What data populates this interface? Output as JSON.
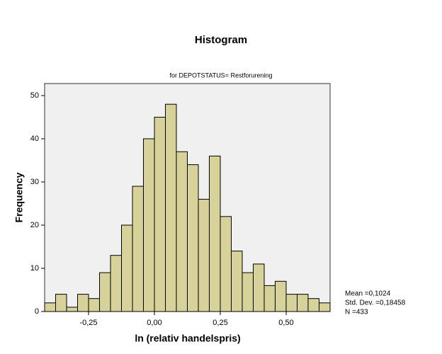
{
  "chart_data": {
    "type": "histogram",
    "title": "Histogram",
    "subtitle": "for DEPOTSTATUS= Restforurening",
    "x_label": "ln (relativ handelspris)",
    "y_label": "Frequency",
    "bins": [
      -0.4167,
      -0.375,
      -0.3333,
      -0.2917,
      -0.25,
      -0.2083,
      -0.1667,
      -0.125,
      -0.0833,
      -0.0417,
      0,
      0.0417,
      0.0833,
      0.125,
      0.1667,
      0.2083,
      0.25,
      0.2917,
      0.3333,
      0.375,
      0.4167,
      0.4583,
      0.5,
      0.5417,
      0.5833,
      0.625,
      0.6667
    ],
    "values": [
      2,
      4,
      1,
      4,
      3,
      9,
      13,
      20,
      29,
      40,
      45,
      48,
      37,
      34,
      26,
      36,
      22,
      14,
      9,
      11,
      6,
      7,
      4,
      4,
      3,
      2
    ],
    "color": "#d6d29a",
    "xlim": [
      -0.4167,
      0.6667
    ],
    "xticks": [
      {
        "value": -0.25,
        "label": "-0,25"
      },
      {
        "value": 0,
        "label": "0,00"
      },
      {
        "value": 0.25,
        "label": "0,25"
      },
      {
        "value": 0.5,
        "label": "0,50"
      }
    ],
    "ylim": [
      0,
      50
    ],
    "yticks": [
      0,
      10,
      20,
      30,
      40,
      50
    ],
    "annotations": [
      "Mean =0,1024",
      "Std. Dev. =0,18458",
      "N =433"
    ]
  }
}
